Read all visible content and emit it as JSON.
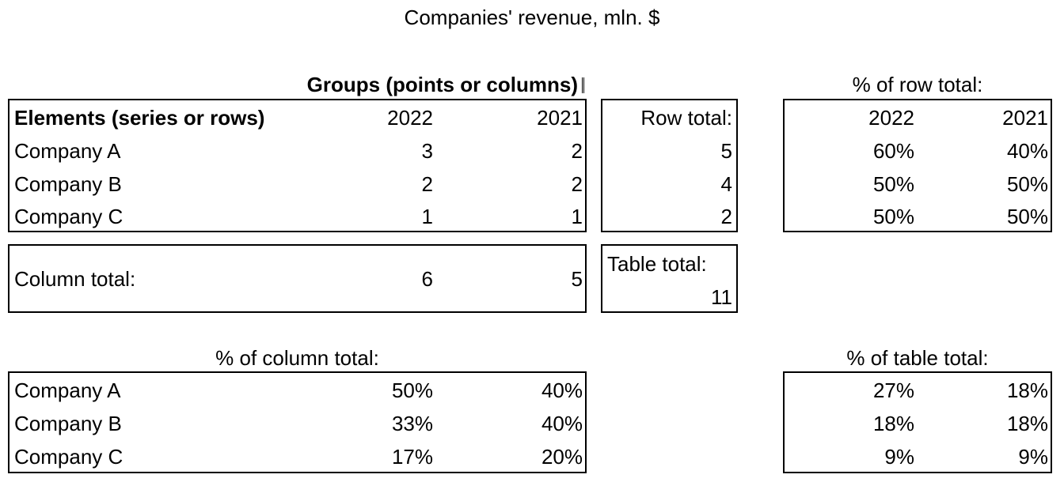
{
  "title": "Companies' revenue, mln. $",
  "main": {
    "groups_header": "Groups (points or columns)",
    "elements_header": "Elements (series or rows)",
    "years": [
      "2022",
      "2021"
    ],
    "rows": [
      {
        "name": "Company A",
        "values": [
          "3",
          "2"
        ]
      },
      {
        "name": "Company B",
        "values": [
          "2",
          "2"
        ]
      },
      {
        "name": "Company C",
        "values": [
          "1",
          "1"
        ]
      }
    ]
  },
  "row_total": {
    "label": "Row total:",
    "values": [
      "5",
      "4",
      "2"
    ]
  },
  "pct_row": {
    "title": "% of row total:",
    "years": [
      "2022",
      "2021"
    ],
    "rows": [
      [
        "60%",
        "40%"
      ],
      [
        "50%",
        "50%"
      ],
      [
        "50%",
        "50%"
      ]
    ]
  },
  "column_total": {
    "label": "Column total:",
    "values": [
      "6",
      "5"
    ]
  },
  "table_total": {
    "label": "Table total:",
    "value": "11"
  },
  "pct_col": {
    "title": "% of column total:",
    "rows": [
      {
        "name": "Company A",
        "values": [
          "50%",
          "40%"
        ]
      },
      {
        "name": "Company B",
        "values": [
          "33%",
          "40%"
        ]
      },
      {
        "name": "Company C",
        "values": [
          "17%",
          "20%"
        ]
      }
    ]
  },
  "pct_table": {
    "title": "% of table total:",
    "rows": [
      [
        "27%",
        "18%"
      ],
      [
        "18%",
        "18%"
      ],
      [
        "9%",
        "9%"
      ]
    ]
  }
}
